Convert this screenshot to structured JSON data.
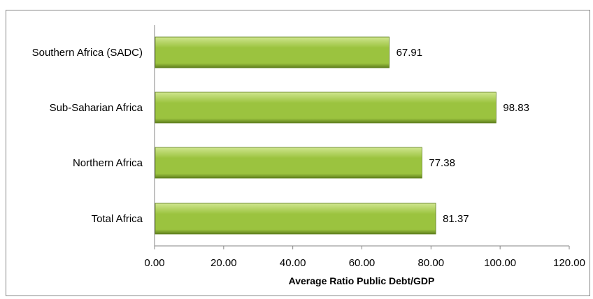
{
  "chart_data": {
    "type": "bar",
    "orientation": "horizontal",
    "categories": [
      "Southern Africa (SADC)",
      "Sub-Saharian Africa",
      "Northern Africa",
      "Total Africa"
    ],
    "values": [
      67.91,
      98.83,
      77.38,
      81.37
    ],
    "value_labels": [
      "67.91",
      "98.83",
      "77.38",
      "81.37"
    ],
    "xlabel": "Average Ratio Public Debt/GDP",
    "xlim": [
      0,
      120
    ],
    "x_ticks": [
      "0.00",
      "20.00",
      "40.00",
      "60.00",
      "80.00",
      "100.00",
      "120.00"
    ],
    "grid": false,
    "legend": "none",
    "colors": {
      "bar_light": "#cfe58e",
      "bar_mid": "#9bc33f",
      "bar_dark": "#5f7f1d",
      "axis": "#868686",
      "border": "#868686"
    }
  }
}
